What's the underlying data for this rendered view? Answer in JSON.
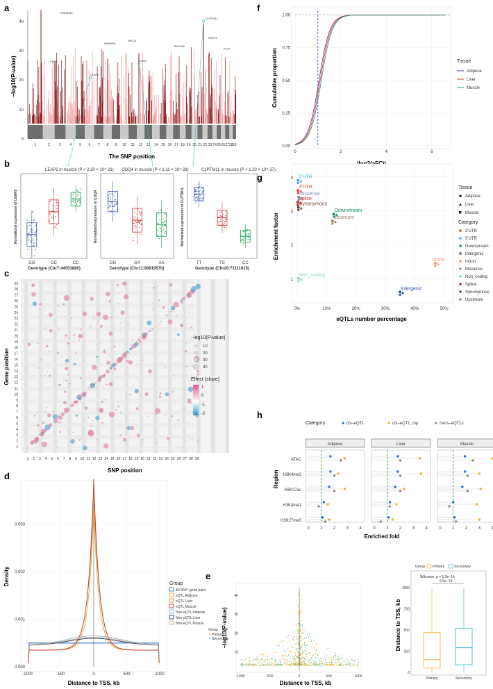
{
  "panel_labels": [
    "a",
    "b",
    "c",
    "d",
    "e",
    "f",
    "g",
    "h"
  ],
  "a": {
    "ylabel": "−log10(P-value)",
    "xlabel": "The SNP position",
    "yticks": [
      "0",
      "10",
      "20",
      "30",
      "40"
    ],
    "chromosomes": [
      "1",
      "2",
      "3",
      "4",
      "5",
      "6",
      "7",
      "8",
      "9",
      "10",
      "11",
      "12",
      "13",
      "14",
      "15",
      "16",
      "17",
      "18",
      "19",
      "20",
      "21",
      "22",
      "23",
      "24",
      "25",
      "26",
      "27",
      "28",
      "29"
    ],
    "gene_labels": [
      "LEAP2",
      "COQ4",
      "CLPTM1L",
      "NPL32",
      "ODD198",
      "NR2F2",
      "LYRM2",
      "TMEM230",
      "HNRNPK",
      "PLTP"
    ]
  },
  "b": {
    "panels": [
      {
        "title": "LEAP2 in muscle (P < 2.20 × 10^-21)",
        "ylabel": "Normalized expression of LEAP2",
        "xlabel": "Genotype (Chr7:44553880)",
        "groups": [
          "GG",
          "GC",
          "CC"
        ]
      },
      {
        "title": "COQ4 in muscle (P < 1.11 × 10^-28)",
        "ylabel": "Normalized expression of COQ4",
        "xlabel": "Genotype (Chr11:98919570)",
        "groups": [
          "GG",
          "GA",
          "AA"
        ]
      },
      {
        "title": "CLPTM1L in muscle (P < 1.23 × 10^-37)",
        "ylabel": "Normalized expression of CLPTM1L",
        "xlabel": "Genotype (Chr20:71111615)",
        "groups": [
          "TT",
          "TC",
          "CC"
        ]
      }
    ]
  },
  "c": {
    "xlabel": "SNP position",
    "ylabel": "Gene position",
    "legend_size_title": "−log10(P-value)",
    "legend_size_values": [
      "10",
      "20",
      "30",
      "40"
    ],
    "legend_color_title": "Effect (slope)",
    "legend_color_values": [
      "1",
      "0",
      "-1",
      "-2"
    ]
  },
  "d": {
    "xlabel": "Distance to TSS, kb",
    "ylabel": "Density",
    "xticks": [
      "-1000",
      "-500",
      "0",
      "500",
      "1000"
    ],
    "yticks": [
      "0.000",
      "0.001",
      "0.002",
      "0.003"
    ],
    "legend_title": "Group",
    "legend": [
      "All SNP–gene pairs",
      "eQTL Adipose",
      "eQTL Liver",
      "eQTL Muscle",
      "Non-eQTL Adipose",
      "Non-eQTL Liver",
      "Non-eQTL Muscle"
    ],
    "colors": [
      "#2f6fd0",
      "#e2a53a",
      "#d98b2b",
      "#c23b3b",
      "#8fb1d9",
      "#2a3a7a",
      "#c9a36a"
    ]
  },
  "e": {
    "xlabel": "Distance to TSS, kb",
    "ylabel": "−log10(P-value)",
    "xticks": [
      "-1000",
      "-500",
      "0",
      "500",
      "1000"
    ],
    "yticks": [
      "10",
      "20",
      "30",
      "40"
    ],
    "legend_title": "Group",
    "legend": [
      "Primary",
      "Secondary"
    ],
    "box_ylabel": "Distance to TSS, kb",
    "box_groups": [
      "Primary",
      "Secondary"
    ],
    "box_yticks": [
      "0",
      "250",
      "500",
      "750",
      "1000"
    ],
    "wilcoxon": "Wilcoxon, p = 5.9e−14",
    "wilcoxon2": "5.9e−14",
    "colors": {
      "primary": "#e9b62c",
      "secondary": "#2bb5c4"
    }
  },
  "f": {
    "xlabel": "|log2(aFC)|",
    "ylabel": "Cumulative proportion",
    "xticks": [
      "0",
      "2",
      "4",
      "6"
    ],
    "yticks": [
      "0.00",
      "0.25",
      "0.50",
      "0.75",
      "1.00"
    ],
    "legend_title": "Tissue",
    "legend": [
      "Adipose",
      "Liver",
      "Muscle"
    ],
    "colors": [
      "#6b3fa0",
      "#e03a3a",
      "#2aa36b"
    ]
  },
  "g": {
    "xlabel": "eQTLs number percentage",
    "ylabel": "Enrichment factor",
    "xticks": [
      "0%",
      "10%",
      "20%",
      "30%",
      "40%",
      "50%"
    ],
    "yticks": [
      "1",
      "2",
      "3",
      "4"
    ],
    "legend_tissue_title": "Tissue",
    "legend_tissue": [
      "Adipose",
      "Liver",
      "Muscle"
    ],
    "legend_category_title": "Category",
    "categories": [
      "3'UTR",
      "5'UTR",
      "Downstream",
      "Intergenic",
      "Intron",
      "Missense",
      "Non_coding",
      "Splice",
      "Synonymous",
      "Upstream"
    ],
    "category_colors": [
      "#e8413a",
      "#38b6d8",
      "#178a6e",
      "#2a4fa8",
      "#f0957a",
      "#7c8fc0",
      "#8fd6c8",
      "#c0242b",
      "#6e4a3a",
      "#a08a70"
    ],
    "chart_data": {
      "type": "scatter",
      "points": [
        {
          "category": "5'UTR",
          "x": 0.3,
          "y": 3.9
        },
        {
          "category": "3'UTR",
          "x": 0.3,
          "y": 3.6
        },
        {
          "category": "Missense",
          "x": 0.5,
          "y": 3.4
        },
        {
          "category": "Splice",
          "x": 0.2,
          "y": 3.25
        },
        {
          "category": "Synonymous",
          "x": 0.4,
          "y": 3.1
        },
        {
          "category": "Downstream",
          "x": 12.5,
          "y": 2.9
        },
        {
          "category": "Upstream",
          "x": 12.0,
          "y": 2.7
        },
        {
          "category": "Intron",
          "x": 47,
          "y": 1.45
        },
        {
          "category": "Non_coding",
          "x": 0.4,
          "y": 1.0
        },
        {
          "category": "Intergenic",
          "x": 35,
          "y": 0.6
        }
      ]
    }
  },
  "h": {
    "xlabel": "Enriched fold",
    "ylabel": "Region",
    "category_title": "Category",
    "category_legend": [
      "cis–eQTL",
      "cis–eQTL_top",
      "trans–eQTLs"
    ],
    "category_colors": [
      "#2a6fc9",
      "#eab22a",
      "#8a8a8a"
    ],
    "facets": [
      "Adipose",
      "Liver",
      "Muscle"
    ],
    "regions": [
      "ATAC",
      "H3K4me3",
      "H3K27ac",
      "H3K4me1",
      "H3K27me3"
    ],
    "xticks": [
      "0",
      "1",
      "2",
      "3",
      "4"
    ],
    "chart_data": {
      "type": "dot",
      "facets": [
        {
          "name": "Adipose",
          "values": {
            "ATAC": [
              1.7,
              2.8,
              2.5
            ],
            "H3K4me3": [
              1.7,
              2.3,
              2.0
            ],
            "H3K27ac": [
              1.6,
              2.8,
              2.0
            ],
            "H3K4me1": [
              1.2,
              1.5,
              0.8
            ],
            "H3K27me3": [
              1.1,
              1.6,
              1.3
            ]
          }
        },
        {
          "name": "Liver",
          "values": {
            "ATAC": [
              1.8,
              3.5,
              2.0
            ],
            "H3K4me3": [
              1.8,
              3.6,
              2.0
            ],
            "H3K27ac": [
              1.6,
              2.3,
              2.0
            ],
            "H3K4me1": [
              1.2,
              1.7,
              1.2
            ],
            "H3K27me3": [
              1.1,
              1.4,
              0.5
            ]
          }
        },
        {
          "name": "Muscle",
          "values": {
            "ATAC": [
              1.9,
              4.0,
              2.5
            ],
            "H3K4me3": [
              1.9,
              3.0,
              2.1
            ],
            "H3K27ac": [
              1.7,
              3.1,
              2.1
            ],
            "H3K4me1": [
              1.0,
              2.8,
              0.7
            ],
            "H3K27me3": [
              1.1,
              3.0,
              1.2
            ]
          }
        }
      ]
    }
  }
}
